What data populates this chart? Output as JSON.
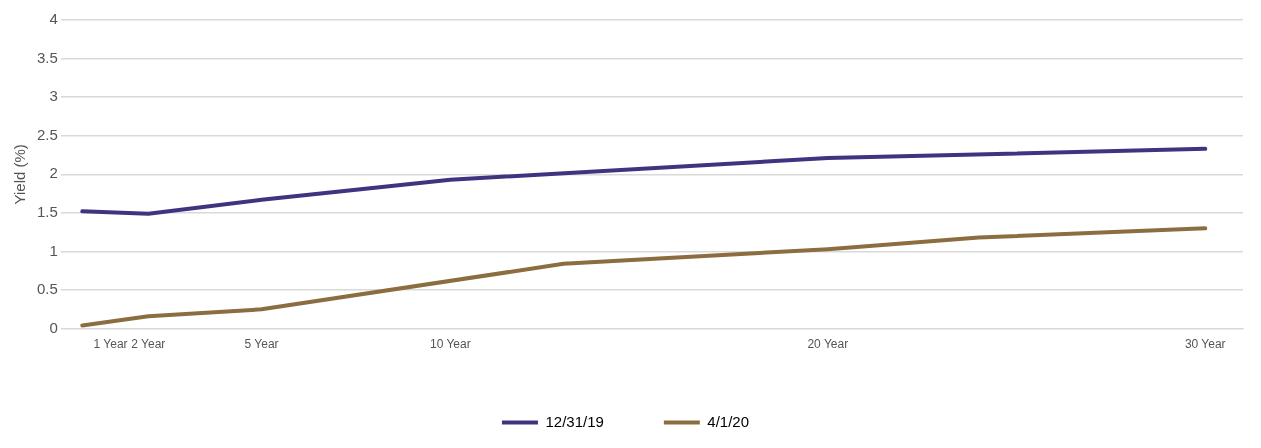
{
  "chart_data": {
    "type": "line",
    "ylabel": "Yield (%)",
    "xlim": [
      0,
      31
    ],
    "xticks": [
      {
        "value": 1,
        "label": "1 Year"
      },
      {
        "value": 2,
        "label": "2 Year"
      },
      {
        "value": 5,
        "label": "5 Year"
      },
      {
        "value": 10,
        "label": "10 Year"
      },
      {
        "value": 20,
        "label": "20 Year"
      },
      {
        "value": 30,
        "label": "30 Year"
      }
    ],
    "ylim": [
      0,
      4
    ],
    "yticks": [
      0,
      0.5,
      1,
      1.5,
      2,
      2.5,
      3,
      3.5,
      4
    ],
    "grid": "y",
    "legend": "bottom",
    "marker": "none",
    "line_style": "solid",
    "series": [
      {
        "name": "12/31/19",
        "color": "#3e3480",
        "x": [
          0.25,
          2,
          5,
          10,
          20,
          30
        ],
        "values": [
          1.52,
          1.49,
          1.67,
          1.93,
          2.21,
          2.33
        ]
      },
      {
        "name": "4/1/20",
        "color": "#8c6d40",
        "x": [
          0.25,
          2,
          5,
          13,
          20,
          24,
          30
        ],
        "values": [
          0.04,
          0.16,
          0.25,
          0.84,
          1.03,
          1.18,
          1.3
        ]
      }
    ]
  }
}
